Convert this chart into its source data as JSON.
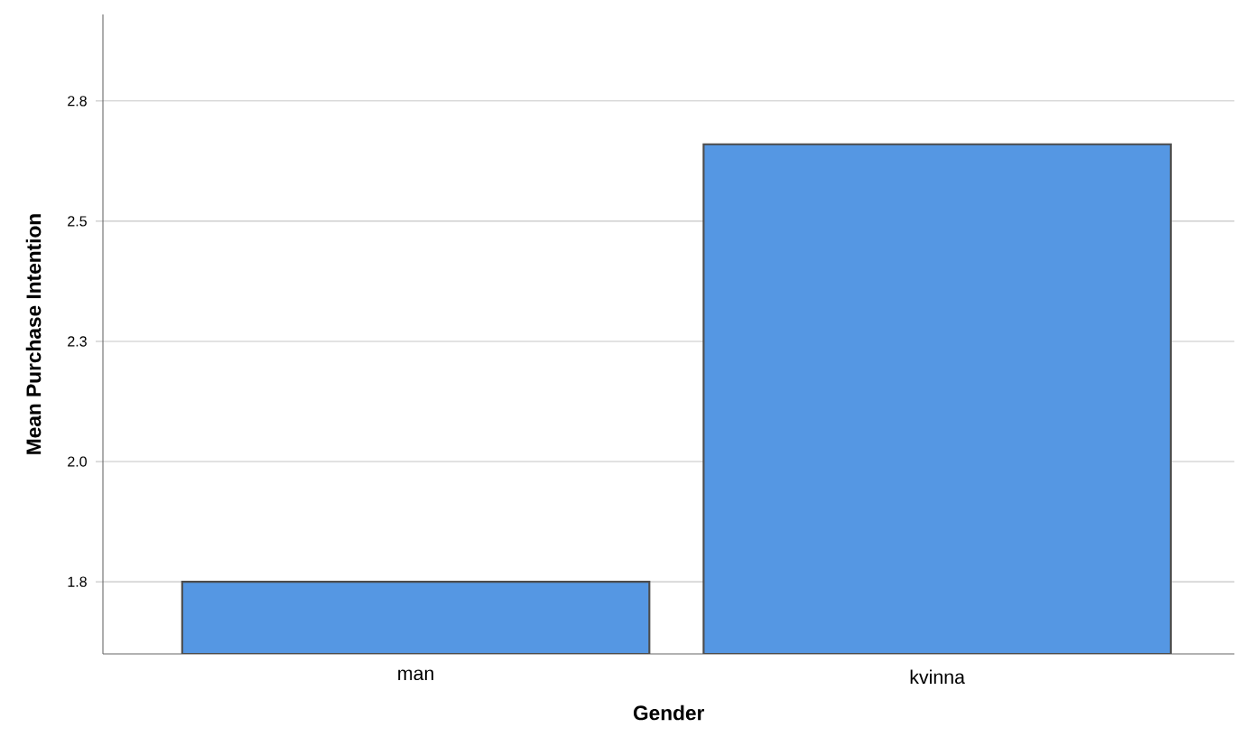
{
  "chart_data": {
    "type": "bar",
    "xlabel": "Gender",
    "ylabel": "Mean Purchase Intention",
    "categories": [
      "man",
      "kvinna"
    ],
    "values": [
      1.75,
      2.66
    ],
    "color": "#5597e3",
    "ylim": [
      1.6,
      2.93
    ],
    "yticks": [
      {
        "value": 1.75,
        "label": "1.8"
      },
      {
        "value": 2.0,
        "label": "2.0"
      },
      {
        "value": 2.25,
        "label": "2.3"
      },
      {
        "value": 2.5,
        "label": "2.5"
      },
      {
        "value": 2.75,
        "label": "2.8"
      }
    ],
    "grid": "y"
  }
}
